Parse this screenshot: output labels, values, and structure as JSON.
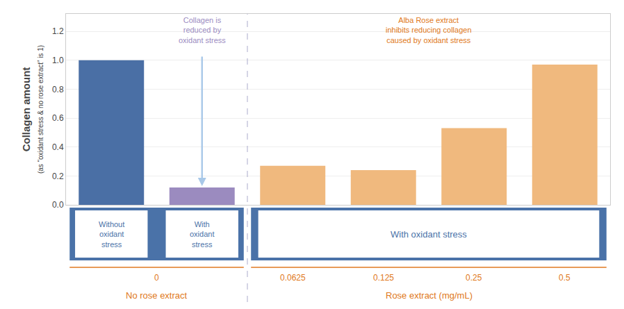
{
  "chart_data": {
    "type": "bar",
    "ylabel": "Collagen amount",
    "ylabel_sub": "(as “oxidant stress & no rose extract” is 1)",
    "categories": [
      null,
      null,
      "0.0625",
      "0.125",
      "0.25",
      "0.5"
    ],
    "values": [
      1.0,
      0.12,
      0.27,
      0.24,
      0.53,
      0.97
    ],
    "colors": [
      "#4a6fa5",
      "#9b8bbf",
      "#f0b97e",
      "#f0b97e",
      "#f0b97e",
      "#f0b97e"
    ],
    "ylim": [
      0,
      1.32
    ],
    "yticks": [
      {
        "value": 0,
        "label": "0.0"
      },
      0.2,
      0.4,
      0.6,
      0.8,
      {
        "value": 1,
        "label": "1.0"
      },
      1.2
    ],
    "grid": true,
    "annotations": [
      {
        "text": "Collagen is\nreduced by\noxidant stress",
        "color": "#9b8bbf",
        "arrow_color": "#a8c8e8"
      },
      {
        "text": "Alba Rose extract\ninhibits reducing collagen\ncaused by oxidant stress",
        "color": "#e07820"
      }
    ],
    "groups": [
      {
        "name": "No rose extract",
        "tick_label": "0",
        "conditions": [
          "Without\noxidant\nstress",
          "With\noxidant\nstress"
        ],
        "color": "#e07820"
      },
      {
        "name": "Rose extract (mg/mL)",
        "conditions": [
          "With oxidant stress"
        ],
        "color": "#e07820"
      }
    ],
    "conditions_color": "#4a72a8"
  }
}
